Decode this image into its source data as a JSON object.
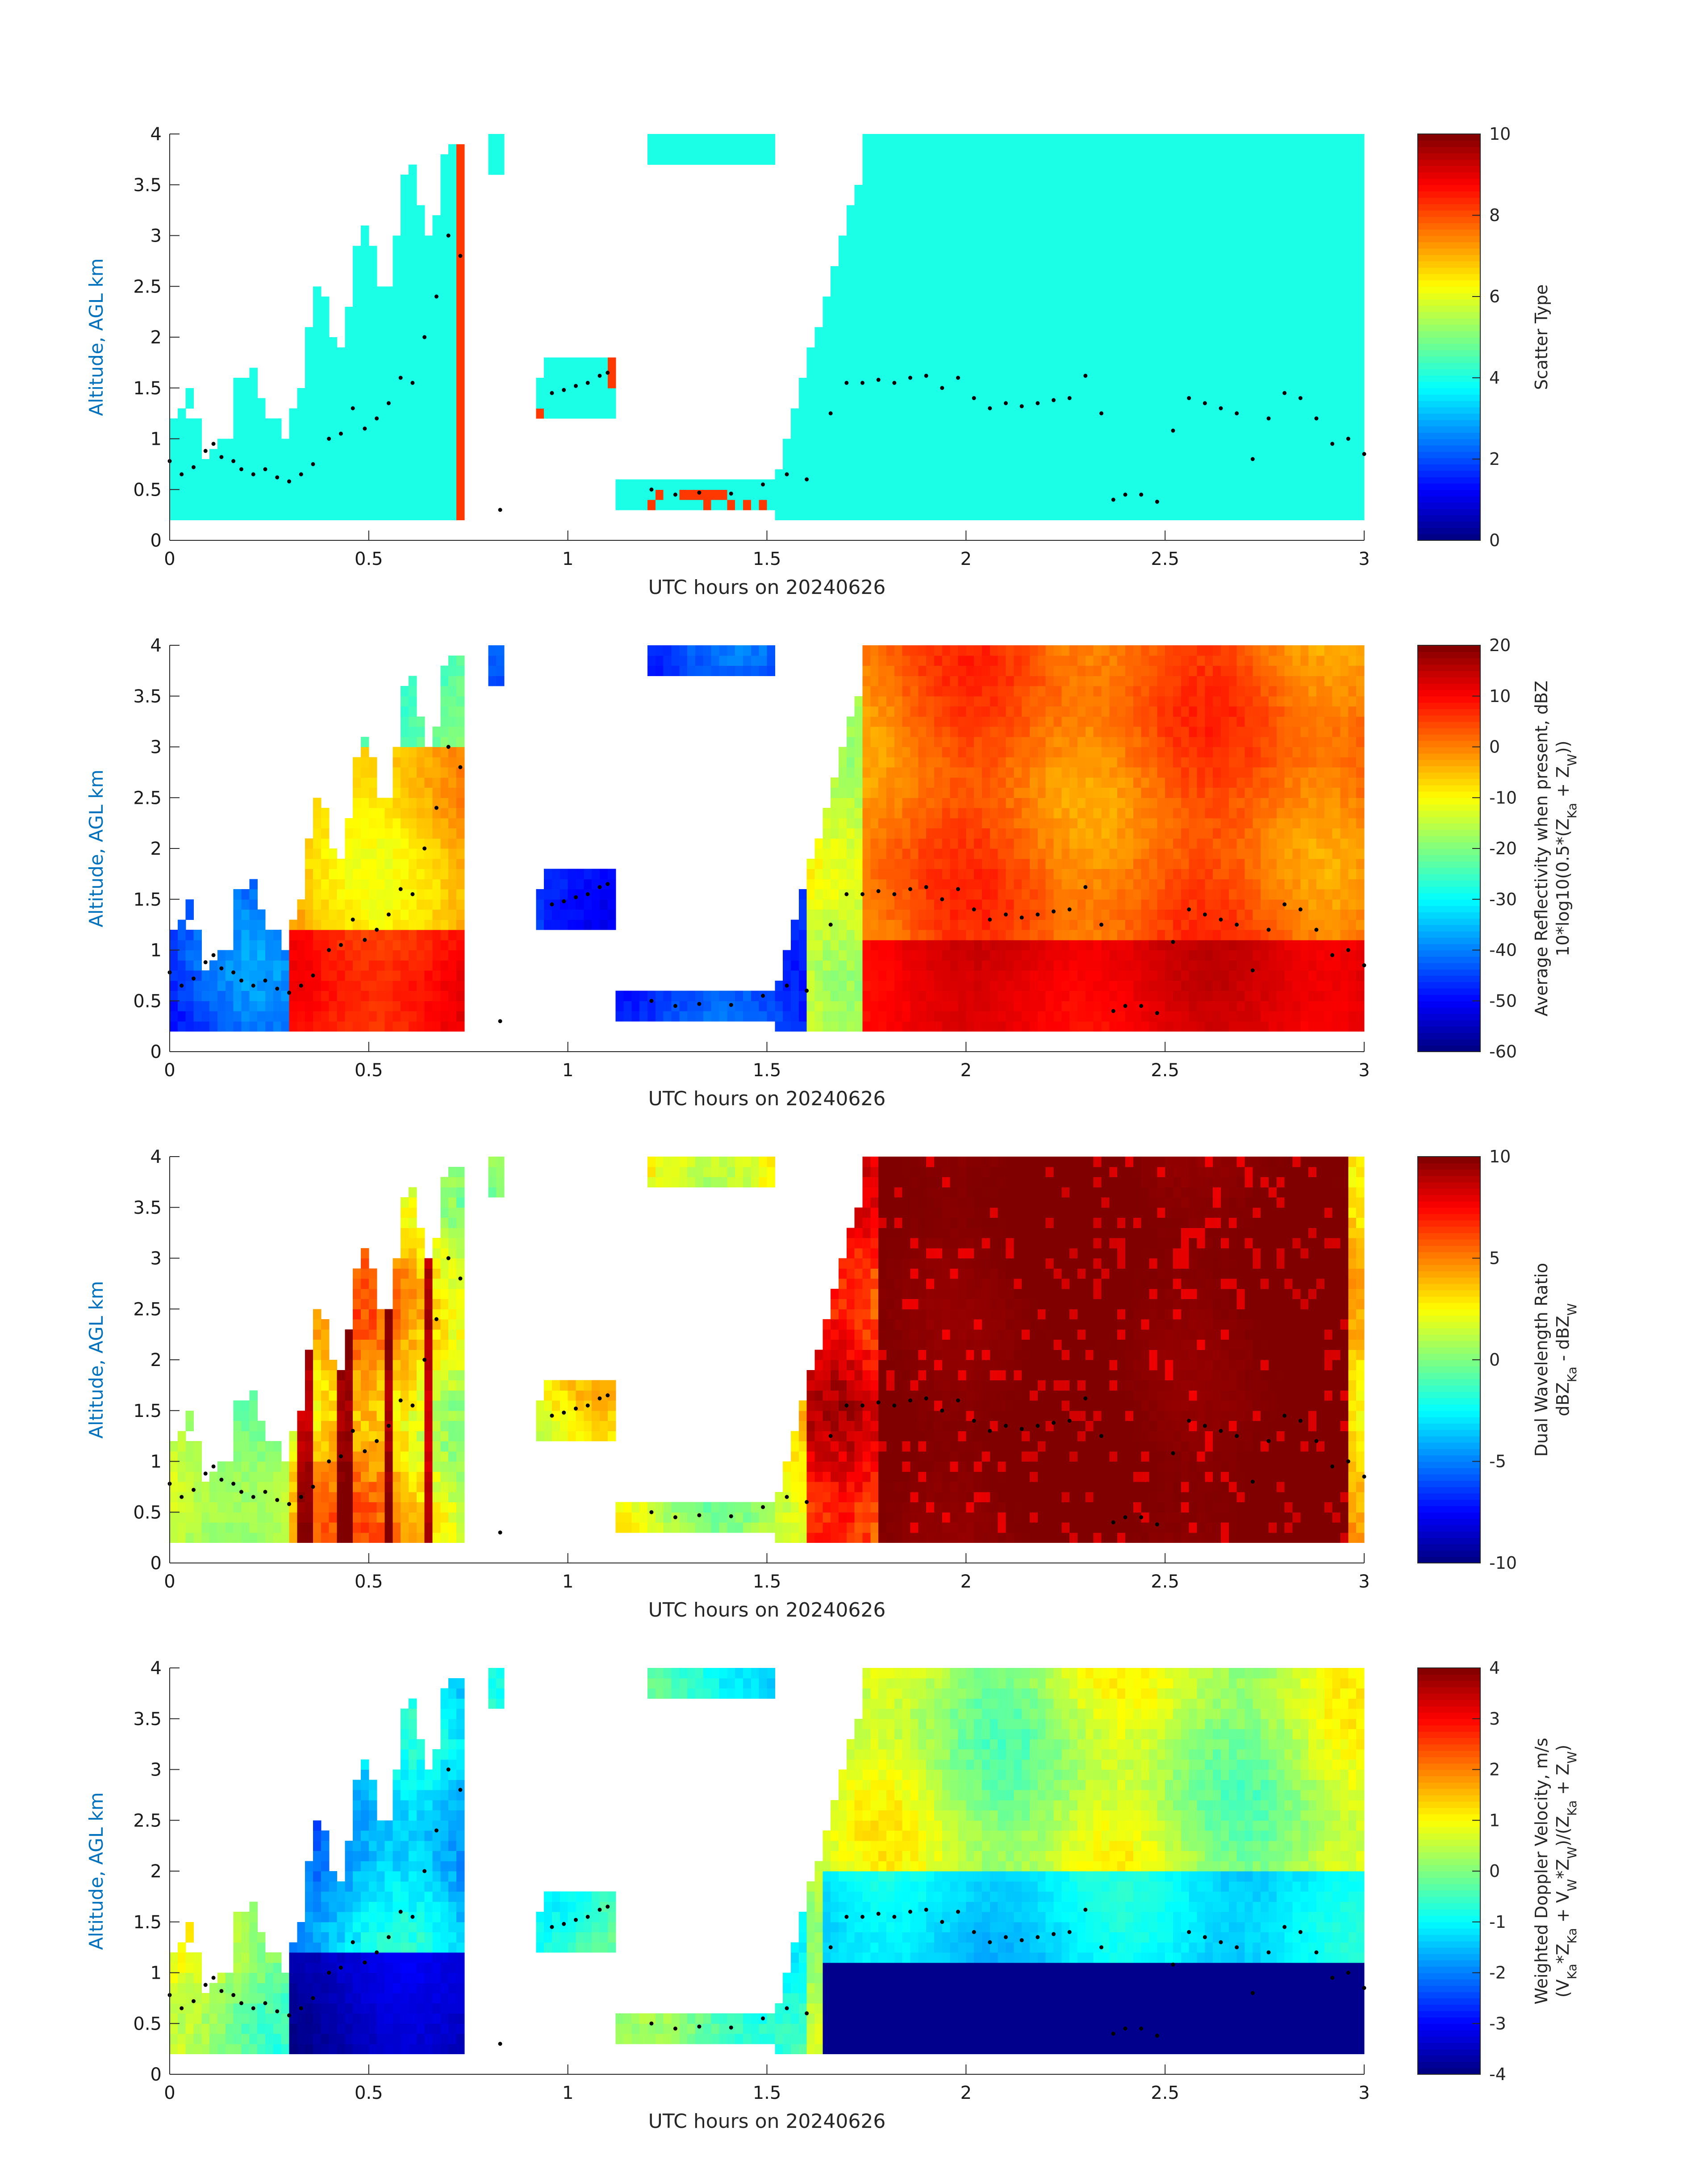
{
  "chart_data": [
    {
      "type": "heatmap",
      "title": "",
      "xlabel": "UTC hours on 20240626",
      "ylabel": "Altitude, AGL km",
      "xlim": [
        0,
        3
      ],
      "ylim": [
        0,
        4
      ],
      "xticks": [
        "0",
        "0.5",
        "1",
        "1.5",
        "2",
        "2.5",
        "3"
      ],
      "yticks": [
        "0",
        "0.5",
        "1",
        "1.5",
        "2",
        "2.5",
        "3",
        "3.5",
        "4"
      ],
      "colorbar": {
        "label_lines": [
          "Scatter Type"
        ],
        "ticks": [
          "0",
          "2",
          "4",
          "6",
          "8",
          "10"
        ],
        "range": [
          0,
          10
        ],
        "colormap": "jet"
      },
      "field": "scatter_type"
    },
    {
      "type": "heatmap",
      "title": "",
      "xlabel": "UTC hours on 20240626",
      "ylabel": "Altitude, AGL km",
      "xlim": [
        0,
        3
      ],
      "ylim": [
        0,
        4
      ],
      "xticks": [
        "0",
        "0.5",
        "1",
        "1.5",
        "2",
        "2.5",
        "3"
      ],
      "yticks": [
        "0",
        "0.5",
        "1",
        "1.5",
        "2",
        "2.5",
        "3",
        "3.5",
        "4"
      ],
      "colorbar": {
        "label_lines": [
          "Average Reflectivity when present, dBZ",
          "10*log10(0.5*(Z_Ka + Z_W))"
        ],
        "ticks": [
          "-60",
          "-50",
          "-40",
          "-30",
          "-20",
          "-10",
          "0",
          "10",
          "20"
        ],
        "range": [
          -60,
          20
        ],
        "colormap": "jet"
      },
      "field": "reflectivity"
    },
    {
      "type": "heatmap",
      "title": "",
      "xlabel": "UTC hours on 20240626",
      "ylabel": "Altitude, AGL km",
      "xlim": [
        0,
        3
      ],
      "ylim": [
        0,
        4
      ],
      "xticks": [
        "0",
        "0.5",
        "1",
        "1.5",
        "2",
        "2.5",
        "3"
      ],
      "yticks": [
        "0",
        "0.5",
        "1",
        "1.5",
        "2",
        "2.5",
        "3",
        "3.5",
        "4"
      ],
      "colorbar": {
        "label_lines": [
          "Dual Wavelength Ratio",
          "dBZ_Ka - dBZ_W"
        ],
        "ticks": [
          "-10",
          "-5",
          "0",
          "5",
          "10"
        ],
        "range": [
          -10,
          10
        ],
        "colormap": "jet"
      },
      "field": "dwr"
    },
    {
      "type": "heatmap",
      "title": "",
      "xlabel": "UTC hours on 20240626",
      "ylabel": "Altitude, AGL km",
      "xlim": [
        0,
        3
      ],
      "ylim": [
        0,
        4
      ],
      "xticks": [
        "0",
        "0.5",
        "1",
        "1.5",
        "2",
        "2.5",
        "3"
      ],
      "yticks": [
        "0",
        "0.5",
        "1",
        "1.5",
        "2",
        "2.5",
        "3",
        "3.5",
        "4"
      ],
      "colorbar": {
        "label_lines": [
          "Weighted Doppler Velocity, m/s",
          "(V_Ka*Z_Ka + V_W*Z_W)/(Z_Ka + Z_W)"
        ],
        "ticks": [
          "-4",
          "-3",
          "-2",
          "-1",
          "0",
          "1",
          "2",
          "3",
          "4"
        ],
        "range": [
          -4,
          4
        ],
        "colormap": "jet"
      },
      "field": "velocity"
    }
  ],
  "cloud_base": {
    "x": [
      0.0,
      0.03,
      0.06,
      0.09,
      0.11,
      0.13,
      0.16,
      0.18,
      0.21,
      0.24,
      0.27,
      0.3,
      0.33,
      0.36,
      0.4,
      0.43,
      0.46,
      0.49,
      0.52,
      0.55,
      0.58,
      0.61,
      0.64,
      0.67,
      0.7,
      0.73,
      0.83,
      0.96,
      0.99,
      1.02,
      1.05,
      1.08,
      1.1,
      1.21,
      1.27,
      1.33,
      1.41,
      1.49,
      1.55,
      1.6,
      1.66,
      1.7,
      1.74,
      1.78,
      1.82,
      1.86,
      1.9,
      1.94,
      1.98,
      2.02,
      2.06,
      2.1,
      2.14,
      2.18,
      2.22,
      2.26,
      2.3,
      2.34,
      2.37,
      2.4,
      2.44,
      2.48,
      2.52,
      2.56,
      2.6,
      2.64,
      2.68,
      2.72,
      2.76,
      2.8,
      2.84,
      2.88,
      2.92,
      2.96,
      3.0
    ],
    "y": [
      0.78,
      0.65,
      0.72,
      0.88,
      0.95,
      0.82,
      0.78,
      0.7,
      0.65,
      0.7,
      0.62,
      0.58,
      0.65,
      0.75,
      1.0,
      1.05,
      1.3,
      1.1,
      1.2,
      1.35,
      1.6,
      1.55,
      2.0,
      2.4,
      3.0,
      2.8,
      0.3,
      1.45,
      1.48,
      1.52,
      1.55,
      1.62,
      1.65,
      0.5,
      0.45,
      0.47,
      0.46,
      0.55,
      0.65,
      0.6,
      1.25,
      1.55,
      1.55,
      1.58,
      1.55,
      1.6,
      1.62,
      1.5,
      1.6,
      1.4,
      1.3,
      1.35,
      1.32,
      1.35,
      1.38,
      1.4,
      1.62,
      1.25,
      0.4,
      0.45,
      0.45,
      0.38,
      1.08,
      1.4,
      1.35,
      1.3,
      1.25,
      0.8,
      1.2,
      1.45,
      1.4,
      1.2,
      0.95,
      1.0,
      0.85
    ]
  }
}
